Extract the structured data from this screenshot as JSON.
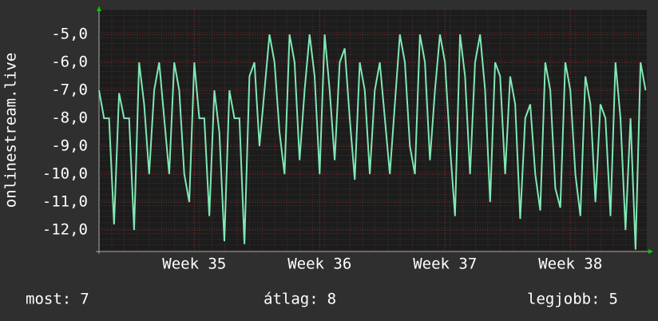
{
  "chart_data": {
    "type": "line",
    "y_label": "onlinestream.live",
    "xlim": [
      34.24,
      38.61
    ],
    "ylim": [
      -12.77,
      -4.11
    ],
    "xticks": [
      {
        "value": 35,
        "label": "Week 35"
      },
      {
        "value": 36,
        "label": "Week 36"
      },
      {
        "value": 37,
        "label": "Week 37"
      },
      {
        "value": 38,
        "label": "Week 38"
      }
    ],
    "yticks": [
      {
        "value": -5,
        "label": "-5,0"
      },
      {
        "value": -6,
        "label": "-6,0"
      },
      {
        "value": -7,
        "label": "-7,0"
      },
      {
        "value": -8,
        "label": "-8,0"
      },
      {
        "value": -9,
        "label": "-9,0"
      },
      {
        "value": -10,
        "label": "-10,0"
      },
      {
        "value": -11,
        "label": "-11,0"
      },
      {
        "value": -12,
        "label": "-12,0"
      }
    ],
    "grid": true,
    "x": [
      34.24,
      34.28,
      34.32,
      34.36,
      34.4,
      34.44,
      34.48,
      34.52,
      34.56,
      34.6,
      34.64,
      34.68,
      34.72,
      34.76,
      34.8,
      34.84,
      34.88,
      34.92,
      34.96,
      35.0,
      35.04,
      35.08,
      35.12,
      35.16,
      35.2,
      35.24,
      35.28,
      35.32,
      35.36,
      35.4,
      35.44,
      35.48,
      35.52,
      35.56,
      35.6,
      35.64,
      35.68,
      35.72,
      35.76,
      35.8,
      35.84,
      35.88,
      35.92,
      35.96,
      36.0,
      36.04,
      36.08,
      36.12,
      36.16,
      36.2,
      36.24,
      36.28,
      36.32,
      36.36,
      36.4,
      36.44,
      36.48,
      36.52,
      36.56,
      36.6,
      36.64,
      36.68,
      36.72,
      36.76,
      36.8,
      36.84,
      36.88,
      36.92,
      36.96,
      37.0,
      37.04,
      37.08,
      37.12,
      37.16,
      37.2,
      37.24,
      37.28,
      37.32,
      37.36,
      37.4,
      37.44,
      37.48,
      37.52,
      37.56,
      37.6,
      37.64,
      37.68,
      37.72,
      37.76,
      37.8,
      37.84,
      37.88,
      37.92,
      37.96,
      38.0,
      38.04,
      38.08,
      38.12,
      38.16,
      38.2,
      38.24,
      38.28,
      38.32,
      38.36,
      38.4,
      38.44,
      38.48,
      38.52,
      38.56,
      38.6
    ],
    "series": [
      {
        "color": "#7fe8b4",
        "values": [
          -7,
          -8,
          -8,
          -11.8,
          -7.1,
          -8,
          -8,
          -12,
          -6,
          -7.5,
          -10,
          -7,
          -6,
          -8,
          -10,
          -6,
          -7,
          -10,
          -11,
          -6,
          -8,
          -8,
          -11.5,
          -7,
          -8.5,
          -12.4,
          -7,
          -8,
          -8,
          -12.5,
          -6.5,
          -6,
          -9,
          -7,
          -5,
          -6,
          -8.5,
          -10,
          -5,
          -6,
          -9.5,
          -7,
          -5,
          -6.5,
          -10,
          -5,
          -7,
          -9.5,
          -6,
          -5.5,
          -8,
          -10.2,
          -6,
          -7,
          -10,
          -7,
          -6,
          -8,
          -10,
          -7.5,
          -5,
          -6,
          -9,
          -10,
          -5,
          -6,
          -9.5,
          -7,
          -5,
          -6,
          -9,
          -11.5,
          -5,
          -6.5,
          -10,
          -6,
          -5,
          -7,
          -11,
          -6,
          -6.5,
          -10,
          -6.5,
          -7.5,
          -11.6,
          -8,
          -7.5,
          -10,
          -11.3,
          -6,
          -7,
          -10.5,
          -11.2,
          -6,
          -7,
          -10,
          -11.5,
          -6.5,
          -7.5,
          -11,
          -7.5,
          -8,
          -11.5,
          -6,
          -8,
          -12,
          -8,
          -12.7,
          -6,
          -7
        ]
      }
    ],
    "stats": [
      {
        "label": "most:",
        "value": 7
      },
      {
        "label": "átlag:",
        "value": 8
      },
      {
        "label": "legjobb:",
        "value": 5
      }
    ]
  }
}
